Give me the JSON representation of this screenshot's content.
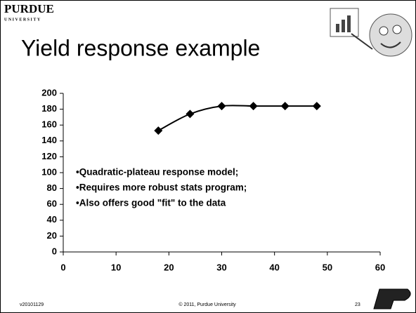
{
  "header": {
    "logo": "PURDUE",
    "logo_sub": "UNIVERSITY"
  },
  "chart_data": {
    "type": "line",
    "title": "Yield response example",
    "x": [
      18,
      24,
      30,
      36,
      42,
      48
    ],
    "series": [
      {
        "color": "#000000",
        "marker": "diamond",
        "smooth": true,
        "values": [
          153,
          174,
          184,
          184,
          184,
          184
        ]
      }
    ],
    "xlim": [
      0,
      60
    ],
    "xticks": [
      0,
      10,
      20,
      30,
      40,
      50,
      60
    ],
    "ylim": [
      0,
      200
    ],
    "yticks": [
      0,
      20,
      40,
      60,
      80,
      100,
      120,
      140,
      160,
      180,
      200
    ],
    "annotations": [
      "•Quadratic-plateau response model;",
      "•Requires more robust stats program;",
      "•Also offers good \"fit\" to the data"
    ]
  },
  "footer": {
    "version": "v20101129",
    "copyright": "© 2011, Purdue University",
    "page": "23"
  }
}
